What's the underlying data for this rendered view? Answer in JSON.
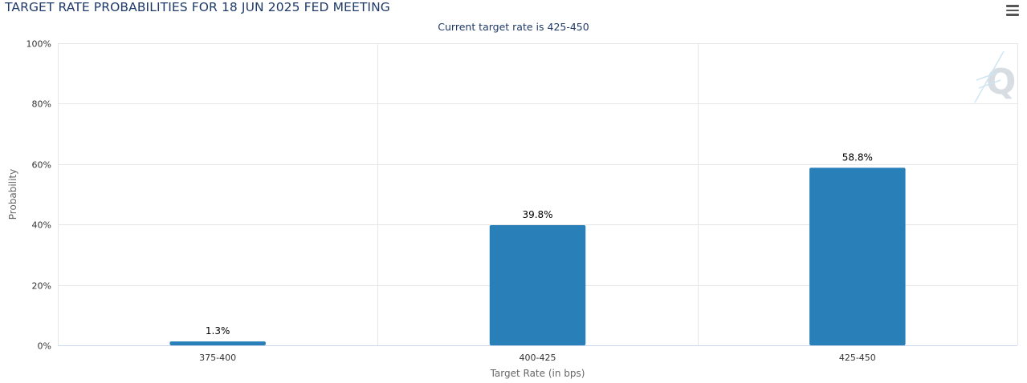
{
  "title": "TARGET RATE PROBABILITIES FOR 18 JUN 2025 FED MEETING",
  "subtitle": "Current target rate is 425-450",
  "menu_icon": "hamburger-menu-icon",
  "logo_icon": "q-logo-watermark",
  "colors": {
    "bar": "#2980b9",
    "grid": "#e6e6e6",
    "title": "#1f3a68"
  },
  "chart_data": {
    "type": "bar",
    "categories": [
      "375-400",
      "400-425",
      "425-450"
    ],
    "values": [
      1.3,
      39.8,
      58.8
    ],
    "data_labels": [
      "1.3%",
      "39.8%",
      "58.8%"
    ],
    "title": "TARGET RATE PROBABILITIES FOR 18 JUN 2025 FED MEETING",
    "subtitle": "Current target rate is 425-450",
    "xlabel": "Target Rate (in bps)",
    "ylabel": "Probability",
    "ylim": [
      0,
      100
    ],
    "yticks": [
      "0%",
      "20%",
      "40%",
      "60%",
      "80%",
      "100%"
    ],
    "grid": true,
    "legend": "none"
  }
}
